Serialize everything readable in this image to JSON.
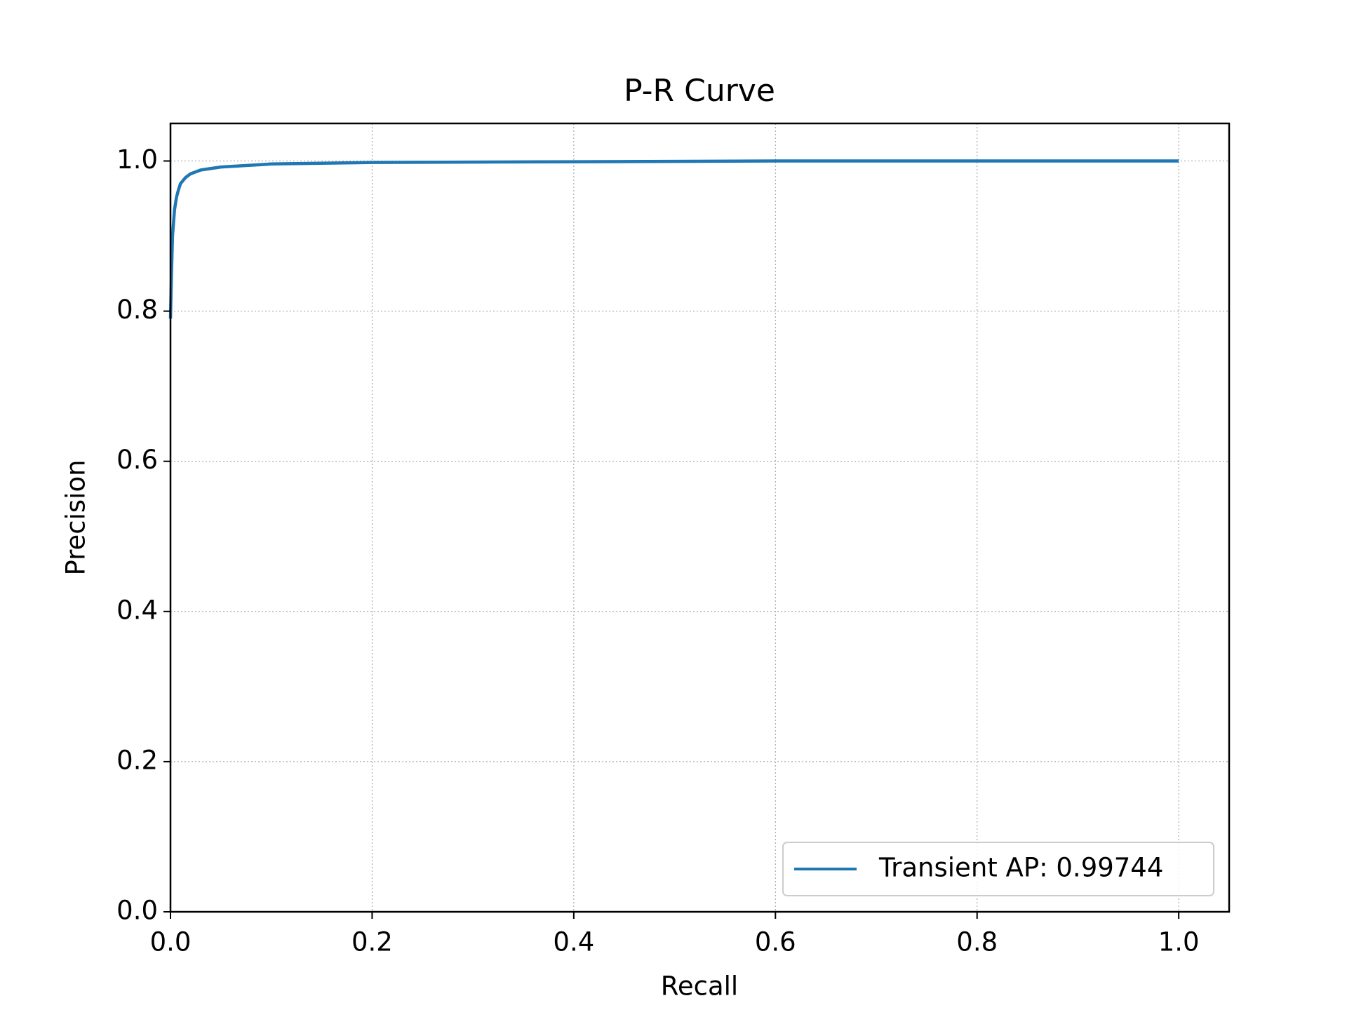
{
  "chart_data": {
    "type": "line",
    "title": "P-R Curve",
    "x_label": "Recall",
    "y_label": "Precision",
    "x": [
      0,
      0.001,
      0.002,
      0.004,
      0.006,
      0.008,
      0.01,
      0.015,
      0.02,
      0.03,
      0.05,
      0.1,
      0.2,
      0.4,
      0.6,
      0.8,
      1.0
    ],
    "series": [
      {
        "name": "Transient AP: 0.99744",
        "color": "#1f77b4",
        "values": [
          0.79,
          0.85,
          0.9,
          0.935,
          0.952,
          0.962,
          0.97,
          0.978,
          0.983,
          0.988,
          0.992,
          0.996,
          0.998,
          0.999,
          1.0,
          1.0,
          1.0
        ]
      }
    ],
    "xlim": [
      0,
      1.05
    ],
    "ylim": [
      0,
      1.05
    ],
    "xticks": [
      {
        "value": 0,
        "label": "0.0"
      },
      0.2,
      0.4,
      0.6,
      0.8,
      {
        "value": 1,
        "label": "1.0"
      }
    ],
    "yticks": [
      {
        "value": 0,
        "label": "0.0"
      },
      0.2,
      0.4,
      0.6,
      0.8,
      {
        "value": 1,
        "label": "1.0"
      }
    ],
    "grid": true,
    "legend_position": "lower right"
  }
}
